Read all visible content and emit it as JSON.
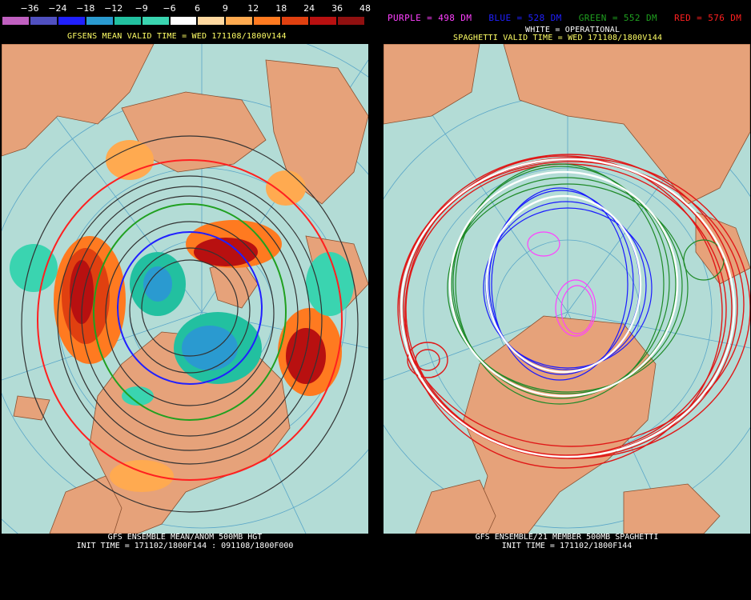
{
  "left_panel": {
    "color_scale": {
      "labels": [
        "−36",
        "−24",
        "−18",
        "−12",
        "−9",
        "−6",
        "6",
        "9",
        "12",
        "18",
        "24",
        "36",
        "48"
      ],
      "colors": [
        "#c060c0",
        "#5050c0",
        "#2020ff",
        "#2a9ad0",
        "#22c0a0",
        "#3ad4b0",
        "#ffffff",
        "#ffd8a0",
        "#ffaa50",
        "#ff7a20",
        "#e04010",
        "#b81010",
        "#901010"
      ]
    },
    "title": "GFSENS MEAN VALID TIME = WED 171108/1800V144",
    "footer_line1": "GFS ENSEMBLE MEAN/ANOM 500MB HGT",
    "footer_line2": "INIT TIME = 171102/1800F144 : 091108/1800F000"
  },
  "right_panel": {
    "legend": [
      {
        "text": "PURPLE = 498 DM",
        "color": "#ff40ff"
      },
      {
        "text": "BLUE = 528 DM",
        "color": "#2020ff"
      },
      {
        "text": "GREEN = 552 DM",
        "color": "#20a020"
      },
      {
        "text": "RED = 576 DM",
        "color": "#ff2020"
      }
    ],
    "subtitle": "WHITE = OPERATIONAL",
    "title": "SPAGHETTI VALID TIME = WED 171108/1800V144",
    "footer_line1": "GFS ENSEMBLE/21 MEMBER 500MB SPAGHETTI",
    "footer_line2": "INIT TIME = 171102/1800F144"
  },
  "colors": {
    "ocean": "#b3dcd6",
    "land": "#e6a27a",
    "grid": "#5aa6c8"
  }
}
